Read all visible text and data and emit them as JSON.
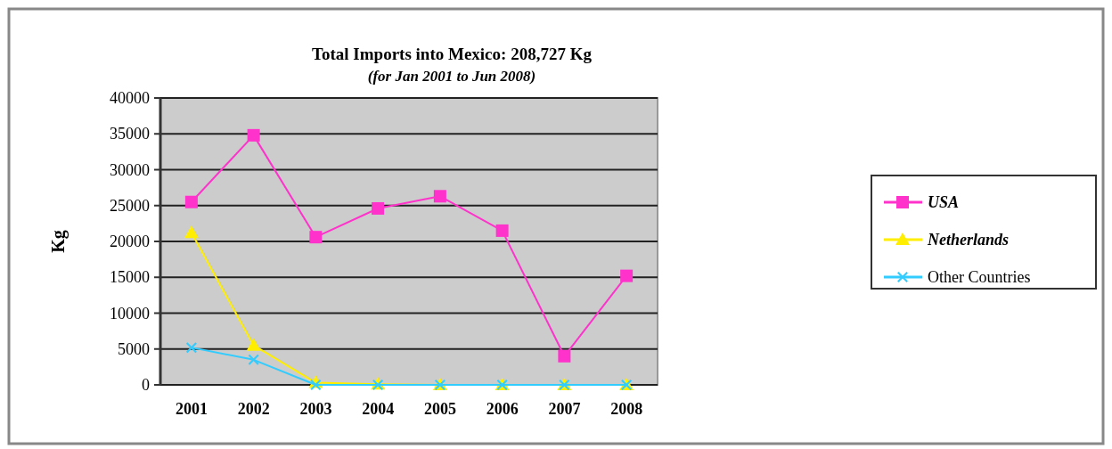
{
  "chart_data": {
    "type": "line",
    "title": "Total Imports into Mexico: 208,727 Kg",
    "subtitle": "(for Jan 2001 to Jun 2008)",
    "ylabel": "Kg",
    "categories": [
      "2001",
      "2002",
      "2003",
      "2004",
      "2005",
      "2006",
      "2007",
      "2008"
    ],
    "series": [
      {
        "name": "USA",
        "color": "#ff33cc",
        "marker": "square",
        "values": [
          25500,
          34800,
          20600,
          24600,
          26300,
          21500,
          4000,
          15200
        ]
      },
      {
        "name": "Netherlands",
        "color": "#ffee00",
        "marker": "triangle",
        "values": [
          21200,
          5500,
          300,
          100,
          0,
          0,
          0,
          0
        ]
      },
      {
        "name": "Other Countries",
        "color": "#33ccff",
        "marker": "cross",
        "values": [
          5200,
          3500,
          0,
          0,
          0,
          0,
          0,
          0
        ]
      }
    ],
    "ylim": [
      0,
      40000
    ],
    "yticks": [
      0,
      5000,
      10000,
      15000,
      20000,
      25000,
      30000,
      35000,
      40000
    ],
    "grid": "y",
    "legend": "right"
  }
}
